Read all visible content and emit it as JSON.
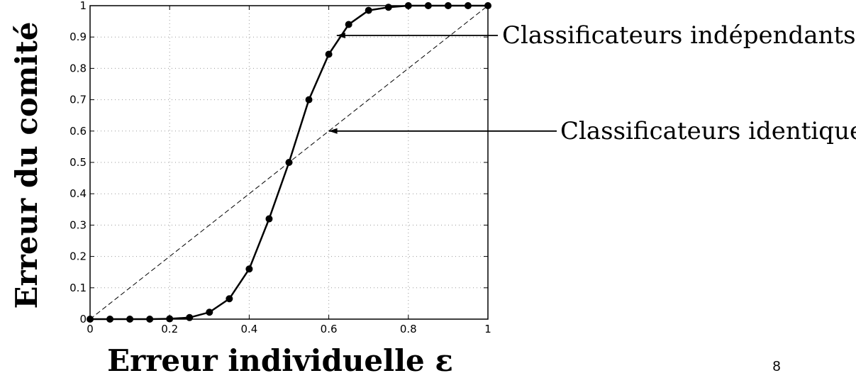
{
  "chart_data": {
    "type": "line",
    "xlabel": "Erreur individuelle ε",
    "ylabel": "Erreur du comité",
    "xlim": [
      0,
      1
    ],
    "ylim": [
      0,
      1
    ],
    "x_ticks": [
      "0",
      "0.2",
      "0.4",
      "0.6",
      "0.8",
      "1"
    ],
    "x_tick_values": [
      0,
      0.2,
      0.4,
      0.6,
      0.8,
      1
    ],
    "y_ticks": [
      "0",
      "0.1",
      "0.2",
      "0.3",
      "0.4",
      "0.5",
      "0.6",
      "0.7",
      "0.8",
      "0.9",
      "1"
    ],
    "y_tick_values": [
      0,
      0.1,
      0.2,
      0.3,
      0.4,
      0.5,
      0.6,
      0.7,
      0.8,
      0.9,
      1
    ],
    "grid": true,
    "series": [
      {
        "name": "Classificateurs indépendants",
        "style": "solid-with-markers",
        "x": [
          0,
          0.05,
          0.1,
          0.15,
          0.2,
          0.25,
          0.3,
          0.35,
          0.4,
          0.45,
          0.5,
          0.55,
          0.6,
          0.65,
          0.7,
          0.75,
          0.8,
          0.85,
          0.9,
          0.95,
          1
        ],
        "y": [
          0,
          0,
          0,
          0,
          0.001,
          0.005,
          0.022,
          0.065,
          0.16,
          0.32,
          0.5,
          0.7,
          0.845,
          0.94,
          0.985,
          0.995,
          1,
          1,
          1,
          1,
          1
        ]
      },
      {
        "name": "Classificateurs identiques",
        "style": "dashed",
        "x": [
          0,
          1
        ],
        "y": [
          0,
          1
        ]
      }
    ],
    "annotations": [
      {
        "text": "Classificateurs indépendants",
        "points_to_series": 0,
        "at_x": 0.62
      },
      {
        "text": "Classificateurs identiques",
        "points_to_series": 1,
        "at_x": 0.6
      }
    ],
    "colors": {
      "line": "#000000",
      "grid": "#9a9a9a"
    }
  },
  "page_number": "8"
}
